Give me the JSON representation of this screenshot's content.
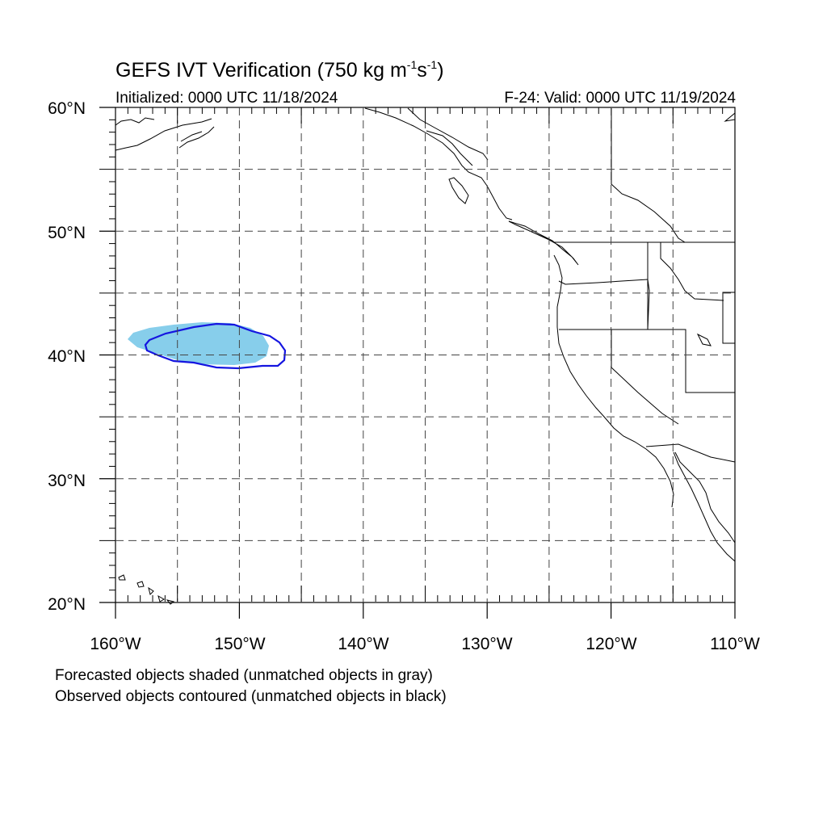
{
  "title": {
    "text": "GEFS IVT Verification (750 kg m",
    "sup1": "-1",
    "mid": "s",
    "sup2": "-1",
    "close": ")"
  },
  "initialized": "Initialized: 0000 UTC 11/18/2024",
  "valid": "F-24: Valid: 0000 UTC 11/19/2024",
  "axes": {
    "lat_labels": [
      "60°N",
      "50°N",
      "40°N",
      "30°N",
      "20°N"
    ],
    "lon_labels": [
      "160°W",
      "150°W",
      "140°W",
      "130°W",
      "120°W",
      "110°W"
    ],
    "lat_range": [
      20,
      60
    ],
    "lon_range": [
      -160,
      -110
    ],
    "grid": "dashed, every 5°"
  },
  "colors": {
    "forecast_fill": "#87CEEB",
    "observed_contour": "#1515E0",
    "coastline": "#000000",
    "grid": "#444444"
  },
  "objects": {
    "forecast_shaded": {
      "center_lat": 41.1,
      "center_lon": -153.2,
      "color": "light-blue"
    },
    "observed_contour": {
      "center_lat": 40.8,
      "center_lon": -151.0,
      "color": "blue"
    }
  },
  "notes": {
    "line1": "Forecasted objects shaded (unmatched objects in gray)",
    "line2": "Observed objects contoured (unmatched objects in black)"
  }
}
